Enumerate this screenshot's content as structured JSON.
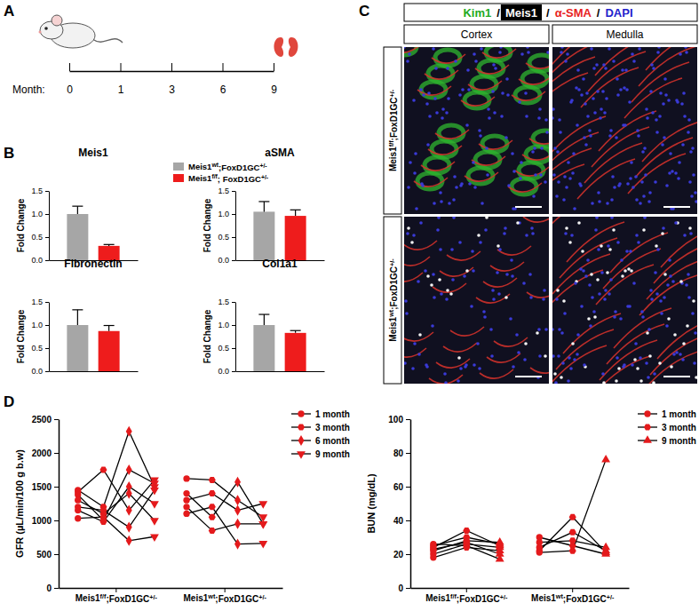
{
  "chart_data": [
    {
      "type": "timeline",
      "panel_label": "A",
      "xlabel": "Month:",
      "categories": [
        "0",
        "1",
        "3",
        "6",
        "9"
      ]
    },
    {
      "type": "bar",
      "panel_label": "B",
      "title": "Meis1",
      "ylabel": "Fold Change",
      "categories": [
        null
      ],
      "series": [
        {
          "name": "Meis1wt;FoxD1GC+/-",
          "color": "#a6a6a6",
          "values": [
            1.0
          ],
          "errors": [
            0.17
          ]
        },
        {
          "name": "Meis1f/f; FoxD1GC+/-",
          "color": "#ee1c1c",
          "values": [
            0.31
          ],
          "errors": [
            0.03
          ]
        }
      ],
      "ylim": [
        0,
        1.5
      ],
      "yticks": [
        {
          "value": 0,
          "label": "0.0"
        },
        0.5,
        {
          "value": 1,
          "label": "1.0"
        },
        1.5
      ],
      "legend": "top"
    },
    {
      "type": "bar",
      "title": "aSMA",
      "ylabel": "Fold Change",
      "categories": [
        null
      ],
      "series": [
        {
          "color": "#a6a6a6",
          "values": [
            1.05
          ],
          "errors": [
            0.22
          ]
        },
        {
          "color": "#ee1c1c",
          "values": [
            0.96
          ],
          "errors": [
            0.13
          ]
        }
      ],
      "ylim": [
        0,
        1.5
      ],
      "yticks": [
        {
          "value": 0,
          "label": "0.0"
        },
        0.5,
        {
          "value": 1,
          "label": "1.0"
        },
        1.5
      ]
    },
    {
      "type": "bar",
      "title": "Fibronectin",
      "ylabel": "Fold Change",
      "categories": [
        null
      ],
      "series": [
        {
          "color": "#a6a6a6",
          "values": [
            1.0
          ],
          "errors": [
            0.33
          ]
        },
        {
          "color": "#ee1c1c",
          "values": [
            0.87
          ],
          "errors": [
            0.12
          ]
        }
      ],
      "ylim": [
        0,
        1.5
      ],
      "yticks": [
        {
          "value": 0,
          "label": "0.0"
        },
        0.5,
        {
          "value": 1,
          "label": "1.0"
        },
        1.5
      ]
    },
    {
      "type": "bar",
      "title": "Col1a1",
      "ylabel": "Fold Change",
      "categories": [
        null
      ],
      "series": [
        {
          "color": "#a6a6a6",
          "values": [
            1.0
          ],
          "errors": [
            0.23
          ]
        },
        {
          "color": "#ee1c1c",
          "values": [
            0.83
          ],
          "errors": [
            0.05
          ]
        }
      ],
      "ylim": [
        0,
        1.5
      ],
      "yticks": [
        {
          "value": 0,
          "label": "0.0"
        },
        0.5,
        {
          "value": 1,
          "label": "1.0"
        },
        1.5
      ]
    },
    {
      "type": "image_grid",
      "panel_label": "C",
      "stains": [
        {
          "text": "Kim1",
          "color": "#22aa22"
        },
        {
          "text": "/",
          "color": "#000000"
        },
        {
          "text": "Meis1",
          "color": "#ffffff"
        },
        {
          "text": "/",
          "color": "#000000"
        },
        {
          "text": "α-SMA",
          "color": "#e8231e"
        },
        {
          "text": "/",
          "color": "#000000"
        },
        {
          "text": "DAPI",
          "color": "#2222cc"
        }
      ],
      "columns": [
        "Cortex",
        "Medulla"
      ],
      "rows": [
        "Meis1f/f;FoxD1GC+/-",
        "Meis1wt;FoxD1GC+/-"
      ]
    },
    {
      "type": "line",
      "panel_label": "D",
      "ylabel": "GFR (µL/min/100 g b.w)",
      "categories": [
        "Meis1f/f;FoxD1GC+/-",
        "Meis1wt;FoxD1GC+/-"
      ],
      "ylim": [
        0,
        2500
      ],
      "yticks": [
        0,
        500,
        1000,
        1500,
        2000,
        2500
      ],
      "legend": "right",
      "series": [
        {
          "name": "1 month",
          "marker": "circle",
          "color": "#e41a1c",
          "values": [
            [
              1450,
              1420,
              1380,
              1300,
              1200,
              1150,
              1030
            ],
            [
              1620,
              1400,
              1300,
              1200,
              1100
            ]
          ]
        },
        {
          "name": "3 month",
          "marker": "hexagon",
          "color": "#e41a1c",
          "values": [
            [
              1200,
              1750,
              1000,
              1100,
              1150,
              980,
              1050
            ],
            [
              1600,
              1050,
              1400,
              850,
              1200
            ]
          ]
        },
        {
          "name": "6 month",
          "marker": "diamond",
          "color": "#e41a1c",
          "values": [
            [
              2320,
              1150,
              1750,
              1400,
              900,
              1500,
              700
            ],
            [
              1300,
              1570,
              1150,
              950,
              650
            ]
          ]
        },
        {
          "name": "9 month",
          "marker": "triangle-down",
          "color": "#e41a1c",
          "values": [
            [
              1500,
              1600,
              1550,
              1000,
              1450,
              1250,
              760
            ],
            [
              1050,
              950,
              1250,
              950,
              660
            ]
          ]
        }
      ]
    },
    {
      "type": "line",
      "ylabel": "BUN (mg/dL)",
      "categories": [
        "Meis1f/f;FoxD1GC+/-",
        "Meis1wt;FoxD1GC+/-"
      ],
      "ylim": [
        0,
        100
      ],
      "yticks": [
        0,
        20,
        40,
        60,
        80,
        100
      ],
      "legend": "right",
      "series": [
        {
          "name": "1 month",
          "marker": "circle",
          "color": "#e41a1c",
          "values": [
            [
              20,
              22,
              24,
              26,
              18,
              25,
              23
            ],
            [
              30,
              22,
              24,
              21,
              27
            ]
          ]
        },
        {
          "name": "3 month",
          "marker": "hexagon",
          "color": "#e41a1c",
          "values": [
            [
              26,
              28,
              34,
              25,
              24,
              30,
              27
            ],
            [
              25,
              42,
              33,
              22,
              28
            ]
          ]
        },
        {
          "name": "9 month",
          "marker": "triangle",
          "color": "#e41a1c",
          "values": [
            [
              24,
              27,
              25,
              17,
              22,
              26,
              20
            ],
            [
              20,
              21,
              22,
              76,
              24
            ]
          ]
        }
      ]
    }
  ]
}
